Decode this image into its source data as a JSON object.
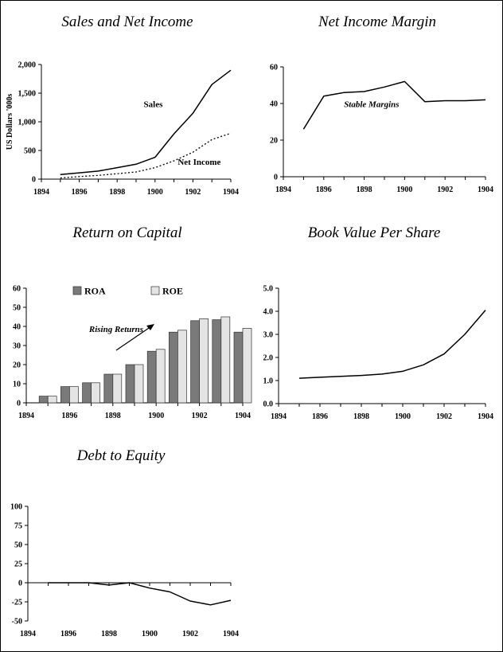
{
  "chart_data": [
    {
      "id": "sales",
      "type": "line",
      "title": "Sales and Net Income",
      "ylabel": "US Dollars '000s",
      "xlim": [
        1894,
        1904
      ],
      "ylim": [
        0,
        2000
      ],
      "xticks": [
        1894,
        1896,
        1898,
        1900,
        1902,
        1904
      ],
      "yticks": [
        0,
        500,
        1000,
        1500,
        2000
      ],
      "yticklabels": [
        "0",
        "500",
        "1,000",
        "1,500",
        "2,000"
      ],
      "series": [
        {
          "name": "Sales",
          "style": "solid",
          "x": [
            1895,
            1896,
            1897,
            1898,
            1899,
            1900,
            1901,
            1902,
            1903,
            1904
          ],
          "y": [
            80,
            110,
            140,
            200,
            260,
            380,
            790,
            1150,
            1650,
            1900
          ]
        },
        {
          "name": "Net Income",
          "style": "dotted",
          "x": [
            1895,
            1896,
            1897,
            1898,
            1899,
            1900,
            1901,
            1902,
            1903,
            1904
          ],
          "y": [
            20,
            45,
            65,
            95,
            125,
            200,
            320,
            470,
            690,
            800
          ]
        }
      ],
      "annotations": [
        {
          "text": "Sales",
          "x": 1899.4,
          "y": 1260
        },
        {
          "text": "Net Income",
          "x": 1901.2,
          "y": 250
        }
      ]
    },
    {
      "id": "margin",
      "type": "line",
      "title": "Net Income Margin",
      "xlim": [
        1894,
        1904
      ],
      "ylim": [
        0,
        60
      ],
      "xticks": [
        1894,
        1896,
        1898,
        1900,
        1902,
        1904
      ],
      "yticks": [
        0,
        20,
        40,
        60
      ],
      "yticklabels": [
        "0",
        "20",
        "40",
        "60"
      ],
      "series": [
        {
          "name": "",
          "style": "solid",
          "x": [
            1895,
            1896,
            1897,
            1898,
            1899,
            1900,
            1901,
            1902,
            1903,
            1904
          ],
          "y": [
            26,
            44,
            46,
            46.5,
            49,
            52,
            41,
            41.5,
            41.5,
            42
          ]
        }
      ],
      "annotations": [
        {
          "text": "Stable Margins",
          "x": 1897.0,
          "y": 38
        }
      ]
    },
    {
      "id": "roc",
      "type": "bar",
      "title": "Return on Capital",
      "xlim": [
        1894,
        1904
      ],
      "ylim": [
        0,
        60
      ],
      "xticks": [
        1894,
        1896,
        1898,
        1900,
        1902,
        1904
      ],
      "yticks": [
        0,
        10,
        20,
        30,
        40,
        50,
        60
      ],
      "yticklabels": [
        "0",
        "10",
        "20",
        "30",
        "40",
        "50",
        "60"
      ],
      "categories": [
        1895,
        1896,
        1897,
        1898,
        1899,
        1900,
        1901,
        1902,
        1903,
        1904
      ],
      "series": [
        {
          "name": "ROA",
          "values": [
            3.5,
            8.5,
            10.5,
            15,
            20,
            27,
            37,
            43,
            43.5,
            37
          ],
          "color": "#7a7a7a"
        },
        {
          "name": "ROE",
          "values": [
            3.5,
            8.5,
            10.5,
            15,
            20,
            28,
            38,
            44,
            45,
            39
          ],
          "color": "#e4e4e4"
        }
      ],
      "annotations": [
        {
          "text": "Rising Returns",
          "x": 1896.9,
          "y": 37
        }
      ]
    },
    {
      "id": "bvps",
      "type": "line",
      "title": "Book Value Per Share",
      "xlim": [
        1894,
        1904
      ],
      "ylim": [
        0,
        5
      ],
      "xticks": [
        1894,
        1896,
        1898,
        1900,
        1902,
        1904
      ],
      "yticks": [
        0,
        1,
        2,
        3,
        4,
        5
      ],
      "yticklabels": [
        "0.0",
        "1.0",
        "2.0",
        "3.0",
        "4.0",
        "5.0"
      ],
      "series": [
        {
          "name": "",
          "style": "solid",
          "x": [
            1895,
            1896,
            1897,
            1898,
            1899,
            1900,
            1901,
            1902,
            1903,
            1904
          ],
          "y": [
            1.1,
            1.14,
            1.18,
            1.22,
            1.28,
            1.4,
            1.68,
            2.15,
            3.0,
            4.05
          ]
        }
      ],
      "annotations": []
    },
    {
      "id": "dte",
      "type": "line",
      "title": "Debt to Equity",
      "xlim": [
        1894,
        1904
      ],
      "ylim": [
        -50,
        100
      ],
      "xticks": [
        1894,
        1896,
        1898,
        1900,
        1902,
        1904
      ],
      "yticks": [
        -50,
        -25,
        0,
        25,
        50,
        75,
        100
      ],
      "yticklabels": [
        "-50",
        "-25",
        "0",
        "25",
        "50",
        "75",
        "100"
      ],
      "series": [
        {
          "name": "",
          "style": "solid",
          "x": [
            1895,
            1896,
            1897,
            1898,
            1899,
            1900,
            1901,
            1902,
            1903,
            1904
          ],
          "y": [
            0,
            0,
            0,
            -3,
            0,
            -7,
            -12,
            -24,
            -29,
            -23
          ]
        }
      ],
      "annotations": []
    }
  ]
}
